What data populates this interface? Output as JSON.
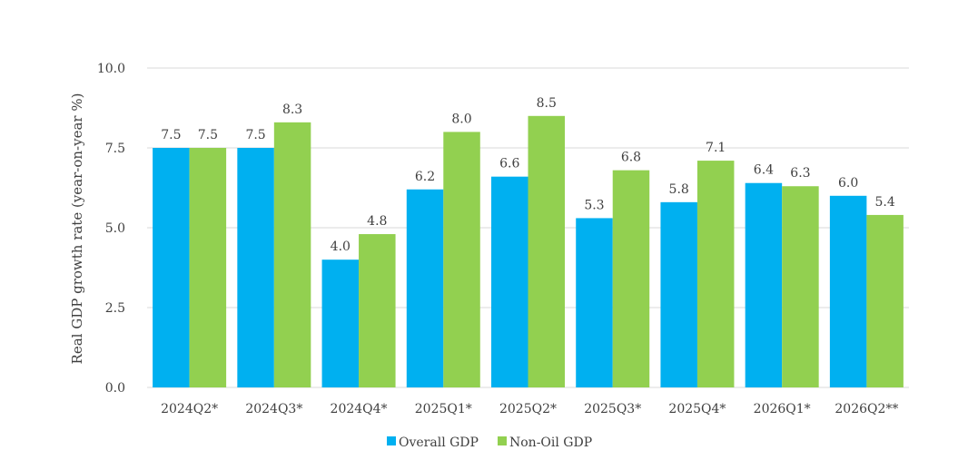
{
  "chart_data": {
    "type": "bar",
    "ylabel": "Real GDP growth rate (year-on-year %)",
    "xlabel": "",
    "ylim": [
      0,
      10
    ],
    "yticks": [
      "0.0",
      "2.5",
      "5.0",
      "7.5",
      "10.0"
    ],
    "grid": true,
    "legend_position": "bottom",
    "categories": [
      "2024Q2*",
      "2024Q3*",
      "2024Q4*",
      "2025Q1*",
      "2025Q2*",
      "2025Q3*",
      "2025Q4*",
      "2026Q1*",
      "2026Q2**"
    ],
    "series": [
      {
        "name": "Overall GDP",
        "color": "#00b0f0",
        "values": [
          7.5,
          7.5,
          4.0,
          6.2,
          6.6,
          5.3,
          5.8,
          6.4,
          6.0
        ]
      },
      {
        "name": "Non-Oil GDP",
        "color": "#92d050",
        "values": [
          7.5,
          8.3,
          4.8,
          8.0,
          8.5,
          6.8,
          7.1,
          6.3,
          5.4
        ]
      }
    ]
  }
}
